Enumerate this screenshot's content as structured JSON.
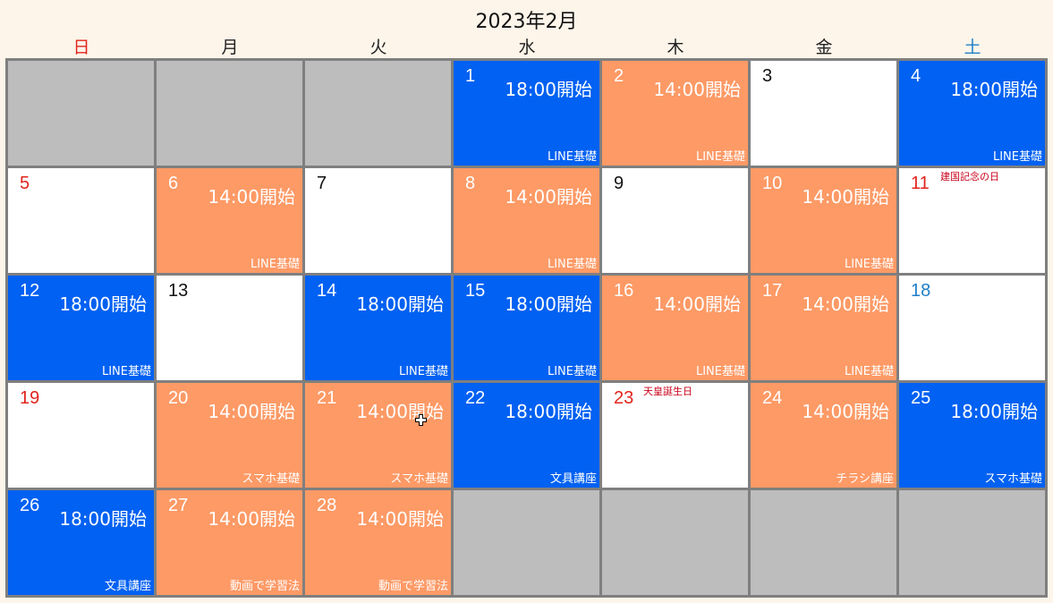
{
  "title": "2023年2月",
  "weekdays": [
    "日",
    "月",
    "火",
    "水",
    "木",
    "金",
    "土"
  ],
  "colors": {
    "blue": "#0061f2",
    "orange": "#fd9a66",
    "empty": "#bdbdbd",
    "sunday": "#e0241c",
    "saturday": "#1f7fc8",
    "holiday_text": "#c8001a"
  },
  "cells": [
    {
      "day": "",
      "type": "empty"
    },
    {
      "day": "",
      "type": "empty"
    },
    {
      "day": "",
      "type": "empty"
    },
    {
      "day": "1",
      "type": "blue",
      "time": "18:00開始",
      "label": "LINE基礎"
    },
    {
      "day": "2",
      "type": "orange",
      "time": "14:00開始",
      "label": "LINE基礎"
    },
    {
      "day": "3",
      "type": "white"
    },
    {
      "day": "4",
      "type": "blue",
      "time": "18:00開始",
      "label": "LINE基礎"
    },
    {
      "day": "5",
      "type": "white"
    },
    {
      "day": "6",
      "type": "orange",
      "time": "14:00開始",
      "label": "LINE基礎"
    },
    {
      "day": "7",
      "type": "white"
    },
    {
      "day": "8",
      "type": "orange",
      "time": "14:00開始",
      "label": "LINE基礎"
    },
    {
      "day": "9",
      "type": "white"
    },
    {
      "day": "10",
      "type": "orange",
      "time": "14:00開始",
      "label": "LINE基礎"
    },
    {
      "day": "11",
      "type": "white",
      "holiday": "建国記念の日",
      "holiday_day": true
    },
    {
      "day": "12",
      "type": "blue",
      "time": "18:00開始",
      "label": "LINE基礎"
    },
    {
      "day": "13",
      "type": "white"
    },
    {
      "day": "14",
      "type": "blue",
      "time": "18:00開始",
      "label": "LINE基礎"
    },
    {
      "day": "15",
      "type": "blue",
      "time": "18:00開始",
      "label": "LINE基礎"
    },
    {
      "day": "16",
      "type": "orange",
      "time": "14:00開始",
      "label": "LINE基礎"
    },
    {
      "day": "17",
      "type": "orange",
      "time": "14:00開始",
      "label": "LINE基礎"
    },
    {
      "day": "18",
      "type": "white"
    },
    {
      "day": "19",
      "type": "white"
    },
    {
      "day": "20",
      "type": "orange",
      "time": "14:00開始",
      "label": "スマホ基礎"
    },
    {
      "day": "21",
      "type": "orange",
      "time": "14:00開始",
      "label": "スマホ基礎"
    },
    {
      "day": "22",
      "type": "blue",
      "time": "18:00開始",
      "label": "文具講座"
    },
    {
      "day": "23",
      "type": "white",
      "holiday": "天皇誕生日",
      "holiday_day": true
    },
    {
      "day": "24",
      "type": "orange",
      "time": "14:00開始",
      "label": "チラシ講座"
    },
    {
      "day": "25",
      "type": "blue",
      "time": "18:00開始",
      "label": "スマホ基礎"
    },
    {
      "day": "26",
      "type": "blue",
      "time": "18:00開始",
      "label": "文具講座"
    },
    {
      "day": "27",
      "type": "orange",
      "time": "14:00開始",
      "label": "動画で学習法"
    },
    {
      "day": "28",
      "type": "orange",
      "time": "14:00開始",
      "label": "動画で学習法"
    },
    {
      "day": "",
      "type": "empty"
    },
    {
      "day": "",
      "type": "empty"
    },
    {
      "day": "",
      "type": "empty"
    },
    {
      "day": "",
      "type": "empty"
    }
  ]
}
